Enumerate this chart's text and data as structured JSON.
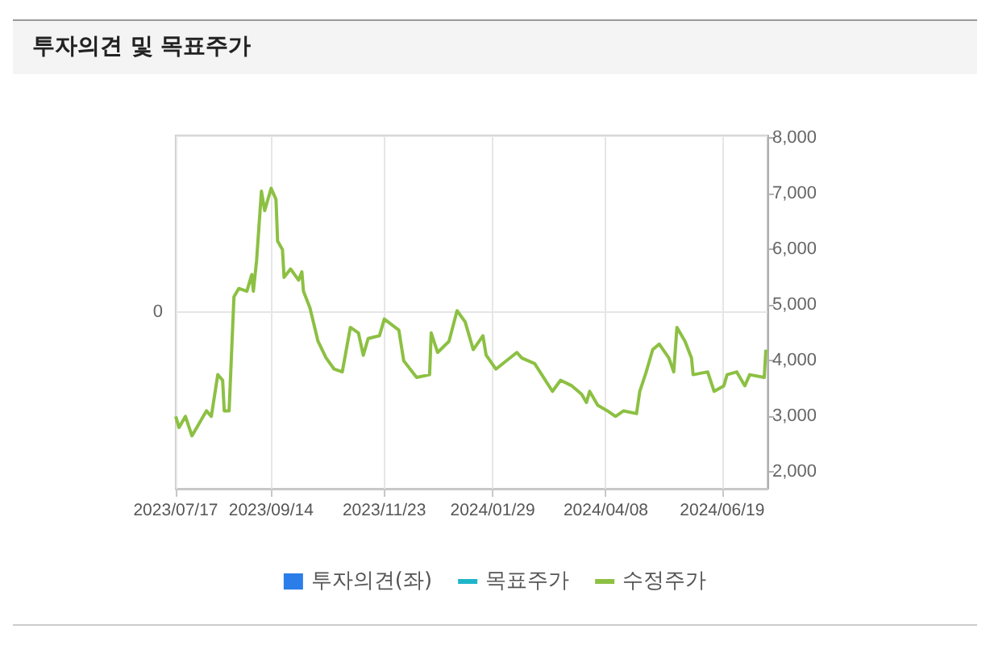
{
  "chart_data": {
    "type": "line",
    "title": "투자의견 및 목표주가",
    "xlim": [
      "2023-07-17",
      "2024-07-17"
    ],
    "xticks": [
      {
        "value": "2023-07-17",
        "label": "2023/07/17"
      },
      {
        "value": "2023-09-14",
        "label": "2023/09/14"
      },
      {
        "value": "2023-11-23",
        "label": "2023/11/23"
      },
      {
        "value": "2024-01-29",
        "label": "2024/01/29"
      },
      {
        "value": "2024-04-08",
        "label": "2024/04/08"
      },
      {
        "value": "2024-06-19",
        "label": "2024/06/19"
      }
    ],
    "annotations": [
      "0"
    ],
    "y2lim": [
      1700,
      8050
    ],
    "y2ticks": [
      {
        "value": 2000,
        "label": "2,000"
      },
      {
        "value": 3000,
        "label": "3,000"
      },
      {
        "value": 4000,
        "label": "4,000"
      },
      {
        "value": 5000,
        "label": "5,000"
      },
      {
        "value": 6000,
        "label": "6,000"
      },
      {
        "value": 7000,
        "label": "7,000"
      },
      {
        "value": 8000,
        "label": "8,000"
      }
    ],
    "grid": true,
    "legend": "bottom",
    "marker": "none",
    "line_style": "solid",
    "series": [
      {
        "name": "투자의견(좌)",
        "type": "bar",
        "color": "#2b7de9",
        "axis": "y"
      },
      {
        "name": "목표주가",
        "type": "line",
        "color": "#1fb5c9",
        "axis": "y2"
      },
      {
        "name": "수정주가",
        "color": "#8cc043",
        "axis": "y2",
        "x": [
          "2023-07-17",
          "2023-07-19",
          "2023-07-23",
          "2023-07-27",
          "2023-08-01",
          "2023-08-05",
          "2023-08-08",
          "2023-08-12",
          "2023-08-15",
          "2023-08-16",
          "2023-08-19",
          "2023-08-22",
          "2023-08-25",
          "2023-08-30",
          "2023-09-02",
          "2023-09-03",
          "2023-09-05",
          "2023-09-08",
          "2023-09-10",
          "2023-09-14",
          "2023-09-17",
          "2023-09-18",
          "2023-09-21",
          "2023-09-22",
          "2023-09-26",
          "2023-10-01",
          "2023-10-03",
          "2023-10-04",
          "2023-10-08",
          "2023-10-13",
          "2023-10-18",
          "2023-10-23",
          "2023-10-28",
          "2023-11-02",
          "2023-11-07",
          "2023-11-10",
          "2023-11-13",
          "2023-11-20",
          "2023-11-23",
          "2023-12-02",
          "2023-12-05",
          "2023-12-13",
          "2023-12-21",
          "2023-12-22",
          "2023-12-26",
          "2024-01-02",
          "2024-01-07",
          "2024-01-12",
          "2024-01-17",
          "2024-01-23",
          "2024-01-25",
          "2024-01-31",
          "2024-02-13",
          "2024-02-16",
          "2024-02-24",
          "2024-03-06",
          "2024-03-11",
          "2024-03-18",
          "2024-03-24",
          "2024-03-27",
          "2024-03-29",
          "2024-04-03",
          "2024-04-09",
          "2024-04-14",
          "2024-04-19",
          "2024-04-27",
          "2024-04-29",
          "2024-05-03",
          "2024-05-07",
          "2024-05-11",
          "2024-05-17",
          "2024-05-20",
          "2024-05-22",
          "2024-05-27",
          "2024-05-31",
          "2024-06-01",
          "2024-06-10",
          "2024-06-14",
          "2024-06-20",
          "2024-06-22",
          "2024-06-28",
          "2024-07-03",
          "2024-07-06",
          "2024-07-15",
          "2024-07-16"
        ],
        "values": [
          3000,
          2800,
          3000,
          2650,
          2900,
          3100,
          3000,
          3750,
          3650,
          3100,
          3100,
          5150,
          5300,
          5250,
          5550,
          5250,
          5800,
          7050,
          6700,
          7100,
          6900,
          6150,
          6000,
          5500,
          5650,
          5450,
          5600,
          5250,
          4950,
          4350,
          4050,
          3850,
          3800,
          4600,
          4500,
          4100,
          4400,
          4450,
          4750,
          4550,
          4000,
          3700,
          3750,
          4500,
          4150,
          4350,
          4900,
          4700,
          4200,
          4450,
          4100,
          3850,
          4150,
          4050,
          3950,
          3450,
          3650,
          3550,
          3400,
          3250,
          3450,
          3200,
          3100,
          3000,
          3100,
          3050,
          3450,
          3800,
          4200,
          4300,
          4050,
          3800,
          4600,
          4350,
          4050,
          3750,
          3800,
          3450,
          3550,
          3750,
          3800,
          3550,
          3750,
          3700,
          4200
        ]
      }
    ]
  }
}
